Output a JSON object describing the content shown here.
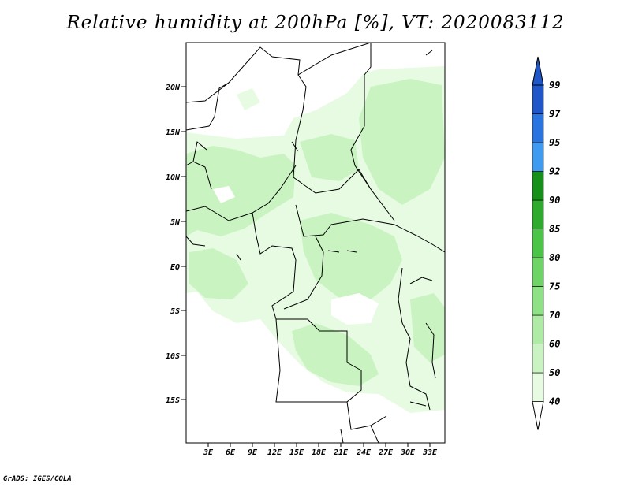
{
  "title": "Relative humidity at 200hPa [%], VT: 2020083112",
  "credit": "GrADS: IGES/COLA",
  "map": {
    "lat_labels": [
      "20N",
      "15N",
      "10N",
      "5N",
      "EQ",
      "5S",
      "10S",
      "15S"
    ],
    "lon_labels": [
      "3E",
      "6E",
      "9E",
      "12E",
      "15E",
      "18E",
      "21E",
      "24E",
      "27E",
      "30E",
      "33E"
    ]
  },
  "colorbar": {
    "labels": [
      "40",
      "50",
      "60",
      "70",
      "75",
      "80",
      "85",
      "90",
      "92",
      "95",
      "97",
      "99"
    ],
    "colors": [
      "#ffffff",
      "#e6fbe2",
      "#c9f4c1",
      "#aeeba5",
      "#8fe185",
      "#6fd466",
      "#4cc447",
      "#2eaa2e",
      "#17901a",
      "#3f9bf0",
      "#2a74e0",
      "#1f57c8"
    ]
  }
}
